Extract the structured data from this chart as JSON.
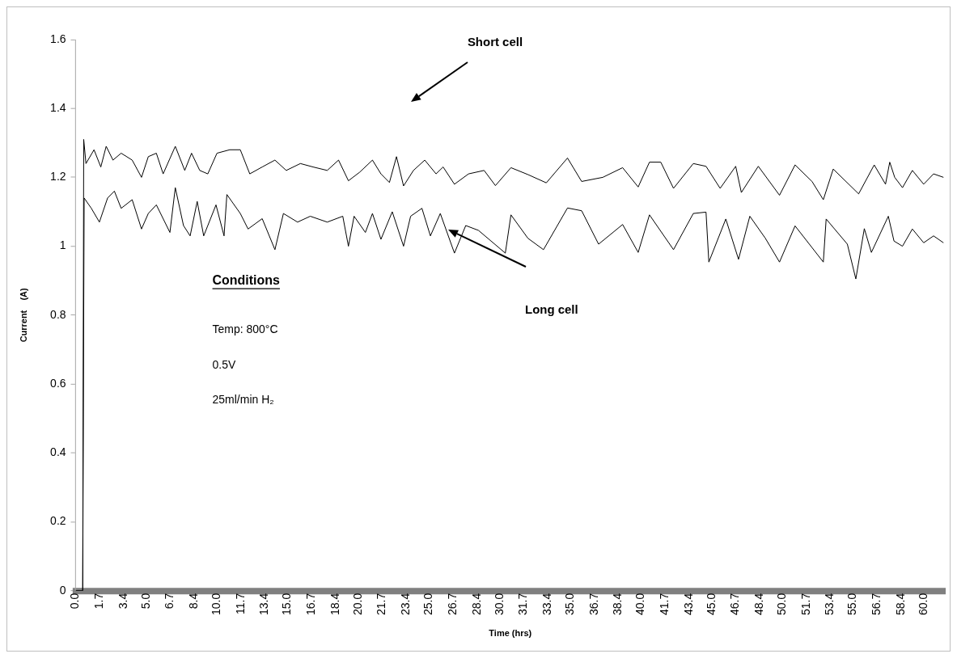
{
  "chart_data": {
    "type": "line",
    "xlabel": "Time (hrs)",
    "ylabel": "Current    (A)",
    "xlim": [
      0,
      61.5
    ],
    "xticks": [
      {
        "value": 0,
        "label": "0.0"
      },
      1.7,
      3.4,
      {
        "value": 5,
        "label": "5.0"
      },
      6.7,
      8.4,
      {
        "value": 10,
        "label": "10.0"
      },
      11.7,
      13.4,
      {
        "value": 15,
        "label": "15.0"
      },
      16.7,
      18.4,
      {
        "value": 20,
        "label": "20.0"
      },
      21.7,
      23.4,
      {
        "value": 25,
        "label": "25.0"
      },
      26.7,
      28.4,
      {
        "value": 30,
        "label": "30.0"
      },
      31.7,
      33.4,
      {
        "value": 35,
        "label": "35.0"
      },
      36.7,
      38.4,
      {
        "value": 40,
        "label": "40.0"
      },
      41.7,
      43.4,
      {
        "value": 45,
        "label": "45.0"
      },
      46.7,
      48.4,
      {
        "value": 50,
        "label": "50.0"
      },
      51.7,
      53.4,
      {
        "value": 55,
        "label": "55.0"
      },
      56.7,
      58.4,
      {
        "value": 60,
        "label": "60.0"
      }
    ],
    "ylim": [
      0,
      1.6
    ],
    "yticks": [
      0,
      0.2,
      0.4,
      0.6,
      0.8,
      1,
      1.2,
      1.4,
      1.6
    ],
    "grid": false,
    "legend": false,
    "marker": "none",
    "line_style": "solid",
    "annotations": [
      "Short cell",
      "Long cell",
      "Conditions",
      "Temp: 800°C",
      "0.5V",
      "25ml/min H₂"
    ],
    "series": [
      {
        "color": "#000000",
        "x": [
          0,
          0.5,
          0.57,
          0.73,
          1.3,
          1.78,
          2.16,
          2.64,
          3.22,
          4.0,
          4.66,
          5.14,
          5.71,
          6.19,
          7.05,
          7.72,
          8.2,
          8.78,
          9.35,
          10.0,
          10.9,
          11.65,
          12.32,
          13.2,
          14.1,
          14.9,
          15.9,
          16.8,
          17.8,
          18.6,
          19.3,
          20.1,
          21.0,
          21.6,
          22.2,
          22.7,
          23.2,
          23.9,
          24.7,
          25.5,
          26.0,
          26.8,
          27.8,
          28.9,
          29.7,
          30.8,
          32.0,
          33.3,
          34.8,
          35.8,
          37.3,
          38.7,
          39.8,
          40.6,
          41.4,
          42.3,
          43.7,
          44.6,
          45.6,
          46.7,
          47.1,
          48.3,
          49.8,
          50.9,
          52.1,
          52.9,
          53.6,
          55.4,
          56.5,
          57.3,
          57.6,
          57.95,
          58.5,
          59.2,
          60.0,
          60.7,
          61.4
        ],
        "values": [
          0,
          0,
          1.31,
          1.24,
          1.28,
          1.23,
          1.29,
          1.25,
          1.27,
          1.25,
          1.2,
          1.26,
          1.27,
          1.21,
          1.29,
          1.22,
          1.27,
          1.22,
          1.21,
          1.27,
          1.28,
          1.28,
          1.21,
          1.23,
          1.25,
          1.22,
          1.24,
          1.23,
          1.22,
          1.25,
          1.19,
          1.215,
          1.25,
          1.21,
          1.185,
          1.26,
          1.175,
          1.22,
          1.25,
          1.21,
          1.23,
          1.18,
          1.21,
          1.22,
          1.176,
          1.228,
          1.208,
          1.184,
          1.256,
          1.188,
          1.2,
          1.228,
          1.172,
          1.244,
          1.244,
          1.168,
          1.24,
          1.232,
          1.168,
          1.232,
          1.156,
          1.232,
          1.148,
          1.236,
          1.188,
          1.135,
          1.224,
          1.152,
          1.236,
          1.18,
          1.244,
          1.2,
          1.17,
          1.22,
          1.18,
          1.21,
          1.2
        ]
      },
      {
        "color": "#000000",
        "x": [
          0,
          0.5,
          0.6,
          1.11,
          1.68,
          2.26,
          2.74,
          3.22,
          4.0,
          4.66,
          5.14,
          5.71,
          6.67,
          7.05,
          7.63,
          8.1,
          8.6,
          9.06,
          9.93,
          10.5,
          10.7,
          11.65,
          12.2,
          13.2,
          14.1,
          14.7,
          15.7,
          16.6,
          17.8,
          18.9,
          19.3,
          19.7,
          20.5,
          21.0,
          21.6,
          22.4,
          23.2,
          23.7,
          24.5,
          25.1,
          25.8,
          26.8,
          27.6,
          28.5,
          30.4,
          30.8,
          32.0,
          33.1,
          34.8,
          35.8,
          37.0,
          38.7,
          39.8,
          40.6,
          42.3,
          43.7,
          44.6,
          44.8,
          46.0,
          46.9,
          47.7,
          48.8,
          49.8,
          50.9,
          52.9,
          53.1,
          54.6,
          55.2,
          55.8,
          56.3,
          57.5,
          57.9,
          58.5,
          59.2,
          60.0,
          60.7,
          61.4
        ],
        "values": [
          0,
          0,
          1.14,
          1.11,
          1.07,
          1.14,
          1.16,
          1.11,
          1.135,
          1.05,
          1.095,
          1.12,
          1.04,
          1.17,
          1.06,
          1.03,
          1.13,
          1.03,
          1.12,
          1.03,
          1.15,
          1.095,
          1.05,
          1.08,
          0.99,
          1.095,
          1.07,
          1.087,
          1.07,
          1.087,
          1.0,
          1.087,
          1.04,
          1.095,
          1.02,
          1.1,
          1.0,
          1.087,
          1.11,
          1.03,
          1.095,
          0.98,
          1.06,
          1.046,
          0.98,
          1.091,
          1.023,
          0.99,
          1.111,
          1.103,
          1.006,
          1.063,
          0.982,
          1.091,
          0.99,
          1.095,
          1.099,
          0.954,
          1.079,
          0.962,
          1.087,
          1.023,
          0.954,
          1.059,
          0.954,
          1.079,
          1.006,
          0.905,
          1.051,
          0.982,
          1.087,
          1.015,
          1.0,
          1.05,
          1.01,
          1.03,
          1.01
        ]
      }
    ]
  }
}
